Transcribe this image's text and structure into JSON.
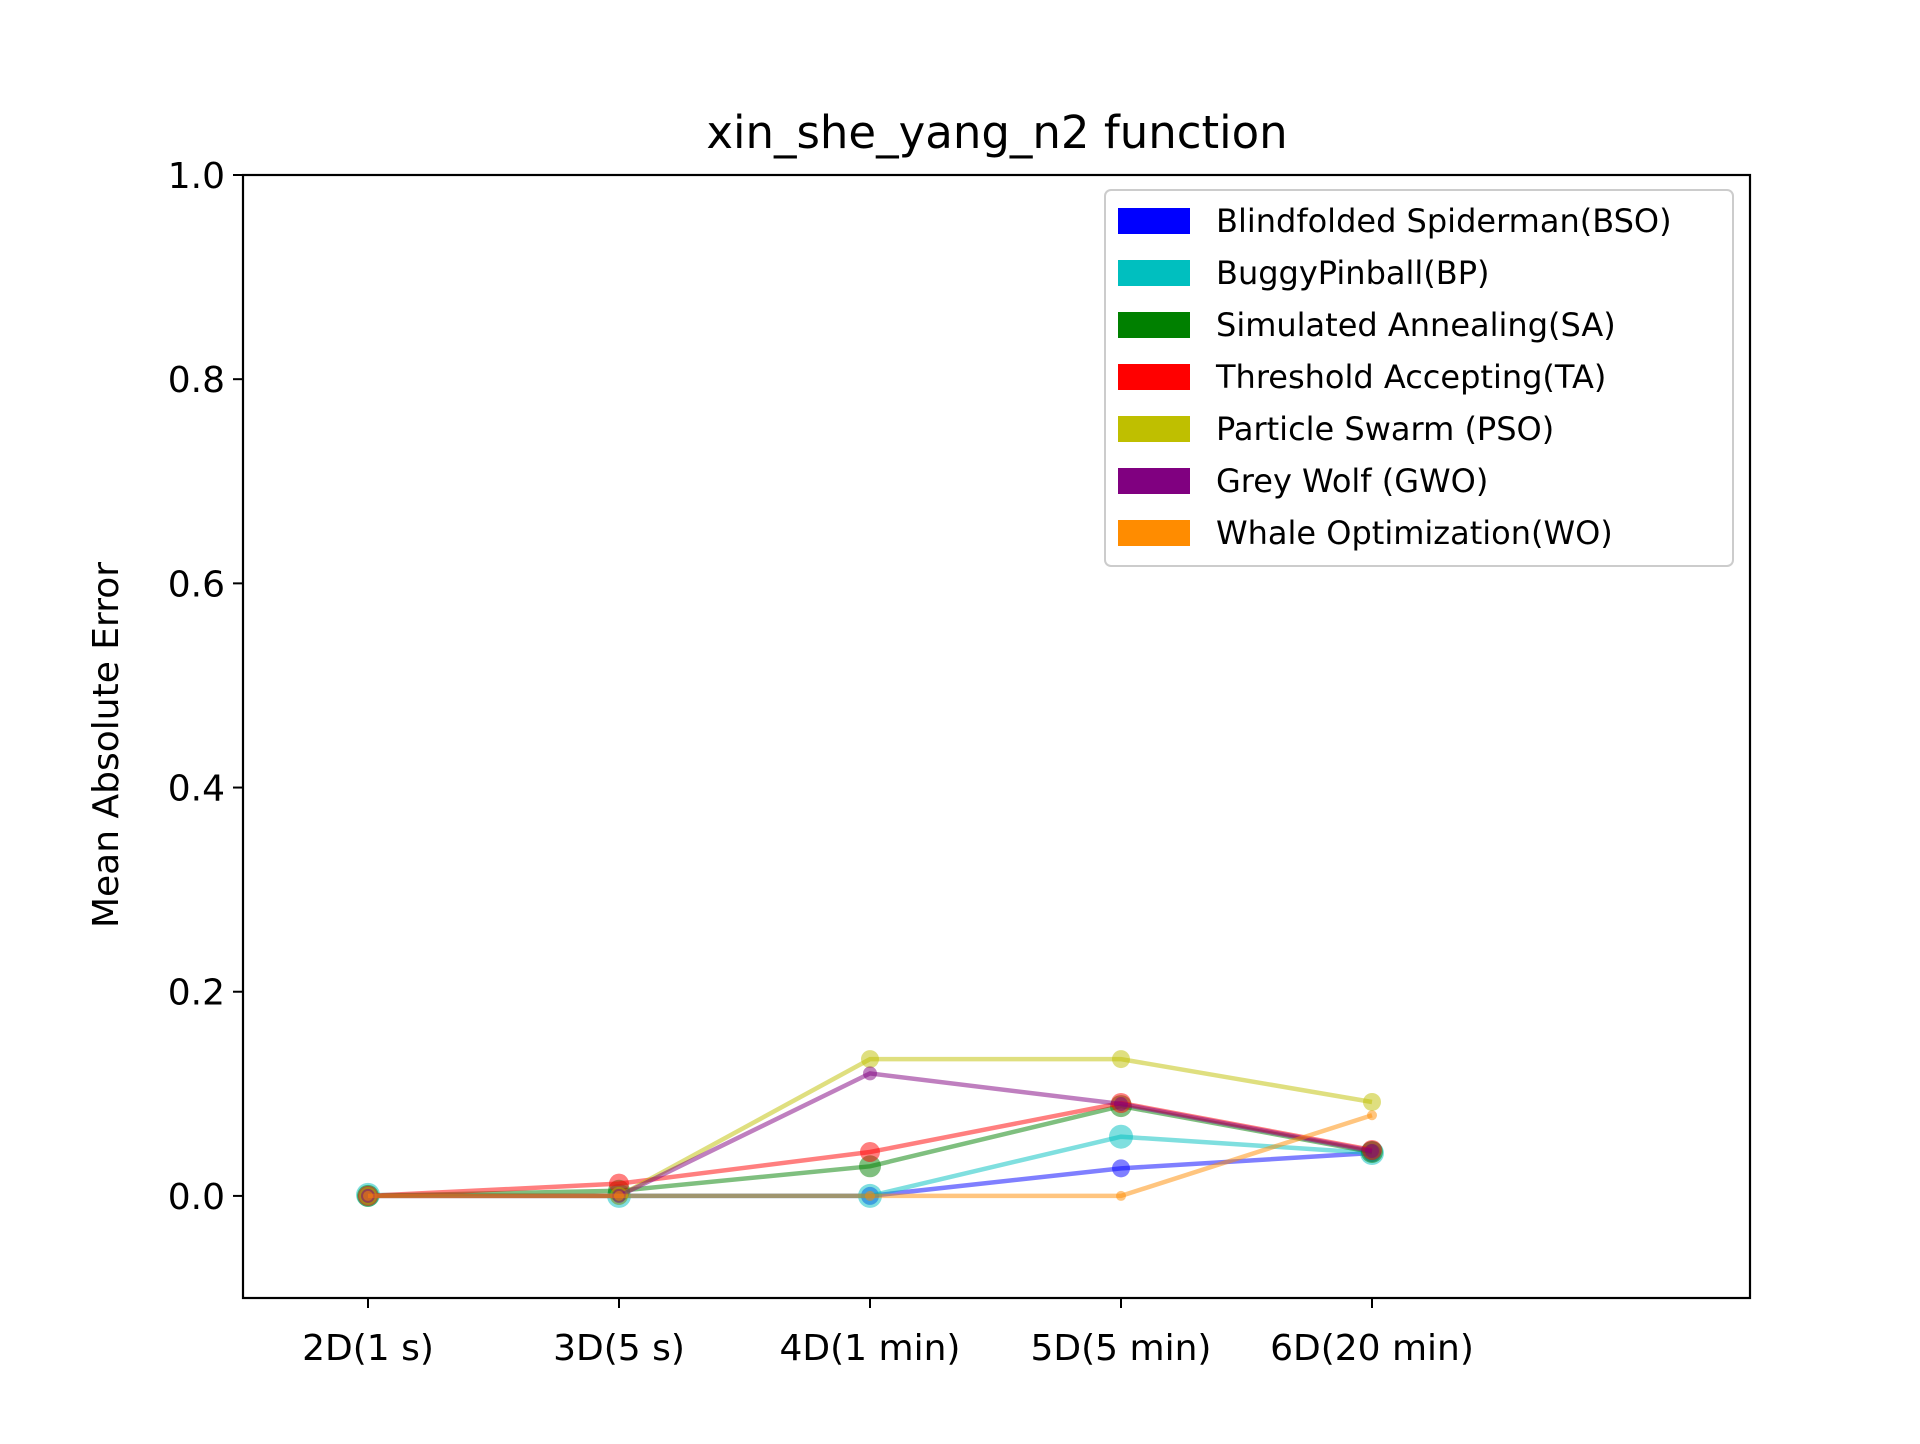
{
  "chart_data": {
    "type": "line",
    "title": "xin_she_yang_n2 function",
    "xlabel": "",
    "ylabel": "Mean Absolute Error",
    "categories": [
      "2D(1 s)",
      "3D(5 s)",
      "4D(1 min)",
      "5D(5 min)",
      "6D(20 min)"
    ],
    "ylim": [
      -0.1,
      1.0
    ],
    "yticks": [
      "0.0",
      "0.2",
      "0.4",
      "0.6",
      "0.8",
      "1.0"
    ],
    "grid": false,
    "legend_position": "top-right",
    "series": [
      {
        "name": "Blindfolded Spiderman(BSO)",
        "color": "#0000ff",
        "values": [
          0.0,
          0.0,
          0.0,
          0.027,
          0.042
        ]
      },
      {
        "name": "BuggyPinball(BP)",
        "color": "#00bfbf",
        "values": [
          0.001,
          0.0,
          0.0,
          0.058,
          0.042
        ]
      },
      {
        "name": "Simulated Annealing(SA)",
        "color": "#008000",
        "values": [
          0.0,
          0.005,
          0.029,
          0.088,
          0.043
        ]
      },
      {
        "name": "Threshold Accepting(TA)",
        "color": "#ff0000",
        "values": [
          0.0,
          0.012,
          0.043,
          0.091,
          0.045
        ]
      },
      {
        "name": "Particle Swarm (PSO)",
        "color": "#bfbf00",
        "values": [
          0.0,
          0.0,
          0.134,
          0.134,
          0.092
        ]
      },
      {
        "name": "Grey Wolf (GWO)",
        "color": "#800080",
        "values": [
          0.0,
          0.0,
          0.12,
          0.09,
          0.044
        ]
      },
      {
        "name": "Whale Optimization(WO)",
        "color": "#ff8c00",
        "values": [
          0.0,
          0.0,
          0.0,
          0.0,
          0.079
        ]
      }
    ]
  }
}
